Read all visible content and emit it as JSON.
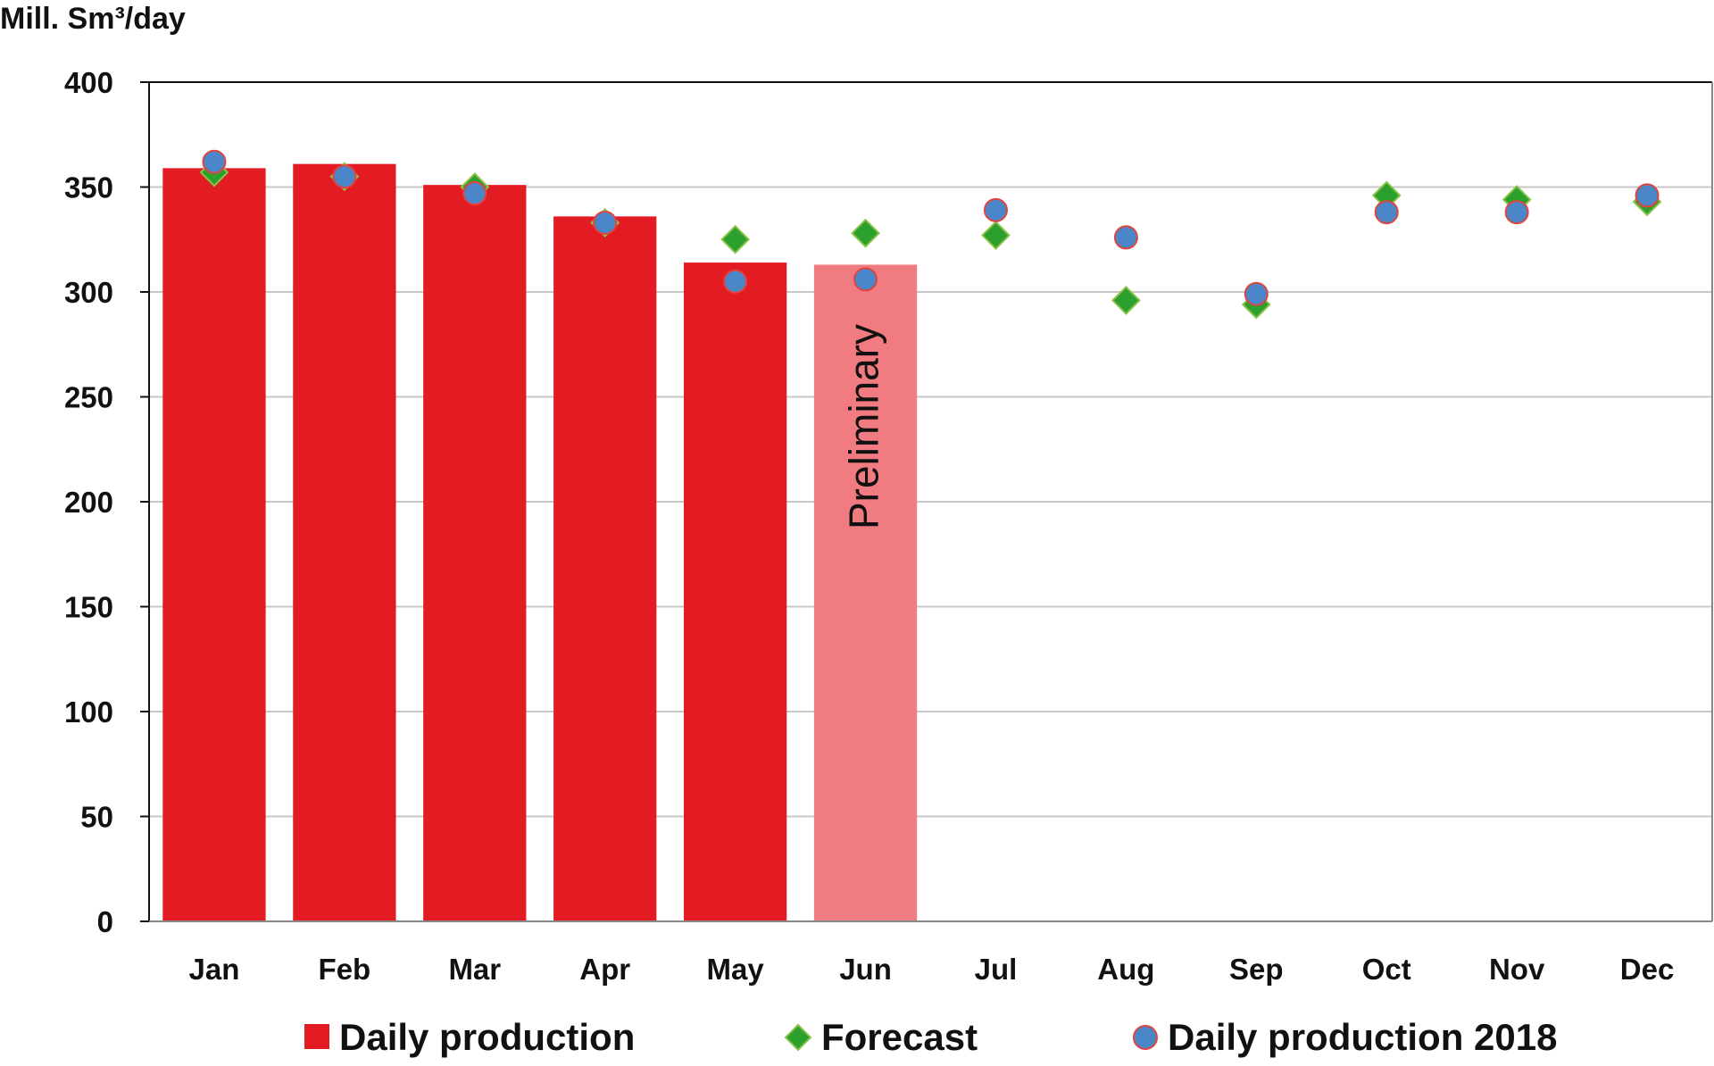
{
  "chart_data": {
    "type": "bar",
    "ylabel": "Mill. Sm³/day",
    "ylim": [
      0,
      400
    ],
    "yticks": [
      0,
      50,
      100,
      150,
      200,
      250,
      300,
      350,
      400
    ],
    "grid": true,
    "categories": [
      "Jan",
      "Feb",
      "Mar",
      "Apr",
      "May",
      "Jun",
      "Jul",
      "Aug",
      "Sep",
      "Oct",
      "Nov",
      "Dec"
    ],
    "series": [
      {
        "name": "Daily production",
        "type": "bar",
        "color": "#e31b23",
        "preliminary_color": "#f07b80",
        "values": [
          359,
          361,
          351,
          336,
          314,
          313,
          null,
          null,
          null,
          null,
          null,
          null
        ]
      },
      {
        "name": "Forecast",
        "type": "scatter",
        "marker": "diamond",
        "color": "#2ca02c",
        "values": [
          357,
          355,
          350,
          333,
          325,
          328,
          327,
          296,
          294,
          346,
          344,
          343
        ]
      },
      {
        "name": "Daily production 2018",
        "type": "scatter",
        "marker": "circle",
        "color": "#4a86c8",
        "values": [
          362,
          355,
          347,
          333,
          305,
          306,
          339,
          326,
          299,
          338,
          338,
          346
        ]
      }
    ],
    "annotations": [
      {
        "text": "Preliminary",
        "category": "Jun",
        "orientation": "vertical"
      }
    ],
    "legend_position": "bottom"
  }
}
